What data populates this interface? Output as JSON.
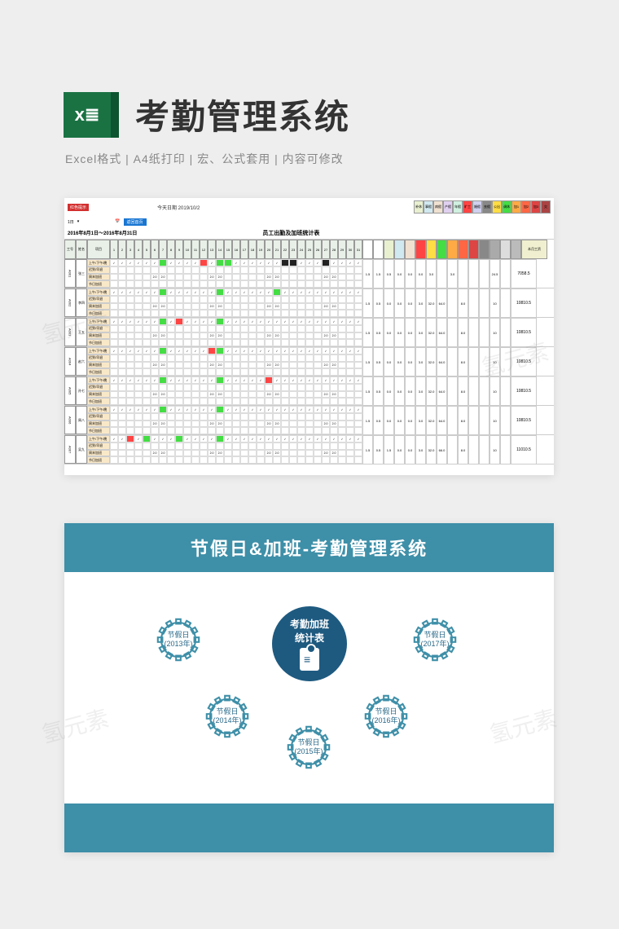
{
  "watermark_text": "氢元素",
  "header": {
    "title": "考勤管理系统",
    "subtitle": "Excel格式 |  A4纸打印 | 宏、公式套用 | 内容可修改"
  },
  "spreadsheet": {
    "today_label": "今天日期 2019/10/2",
    "date_selector": "1日",
    "return_btn": "返回首页",
    "date_range": "2016年8月1日～2016年8月31日",
    "table_title": "员工出勤及加班统计表",
    "legend_items": [
      {
        "label": "补休",
        "bg": "#e8f0d0"
      },
      {
        "label": "事假",
        "bg": "#d0e8f0"
      },
      {
        "label": "病假",
        "bg": "#f0e0d0"
      },
      {
        "label": "产假",
        "bg": "#e0d0f0"
      },
      {
        "label": "年假",
        "bg": "#d0f0e0"
      },
      {
        "label": "旷工",
        "bg": "#ff4444"
      },
      {
        "label": "婚假",
        "bg": "#d0d0f0"
      },
      {
        "label": "丧假",
        "bg": "#888888"
      },
      {
        "label": "公出",
        "bg": "#ffdd44"
      },
      {
        "label": "调休",
        "bg": "#44dd44"
      },
      {
        "label": "加1",
        "bg": "#ffaa44"
      },
      {
        "label": "加2",
        "bg": "#ff6644"
      },
      {
        "label": "加3",
        "bg": "#dd4444"
      },
      {
        "label": "欠",
        "bg": "#aa4444"
      }
    ],
    "header_cols": {
      "id": "工号",
      "name": "姓名",
      "item": "项目",
      "salary": "本月工资"
    },
    "days": [
      1,
      2,
      3,
      4,
      5,
      6,
      7,
      8,
      9,
      10,
      11,
      12,
      13,
      14,
      15,
      16,
      17,
      18,
      19,
      20,
      21,
      22,
      23,
      24,
      25,
      26,
      27,
      28,
      29,
      30,
      31
    ],
    "stat_headers": [
      {
        "label": "",
        "bg": "#fff"
      },
      {
        "label": "",
        "bg": "#fff"
      },
      {
        "label": "",
        "bg": "#e8f0d0"
      },
      {
        "label": "",
        "bg": "#d0e8f0"
      },
      {
        "label": "",
        "bg": "#f0e0d0"
      },
      {
        "label": "",
        "bg": "#ff4444"
      },
      {
        "label": "",
        "bg": "#ffdd44"
      },
      {
        "label": "",
        "bg": "#44dd44"
      },
      {
        "label": "",
        "bg": "#ffaa44"
      },
      {
        "label": "",
        "bg": "#ff6644"
      },
      {
        "label": "",
        "bg": "#dd4444"
      },
      {
        "label": "",
        "bg": "#888"
      },
      {
        "label": "",
        "bg": "#aaa"
      },
      {
        "label": "",
        "bg": "#ddd"
      },
      {
        "label": "",
        "bg": "#bbb"
      }
    ],
    "row_labels": [
      "上午/下午/晚",
      "迟到/早退",
      "周末加班",
      "节日加班"
    ],
    "employees": [
      {
        "id": "A001",
        "name": "张三",
        "salary": "7058.5",
        "cells_bg": {
          "0-6": "#44dd44",
          "0-13": "#44dd44",
          "0-14": "#44dd44",
          "0-11": "#ff4444",
          "0-21": "#222",
          "0-22": "#222",
          "0-26": "#222"
        },
        "stats": [
          "1.5",
          "1.5",
          "0.5",
          "0.0",
          "0.0",
          "0.0",
          "3.0",
          "",
          "3.0",
          "",
          "",
          "",
          "24.5",
          ""
        ]
      },
      {
        "id": "A002",
        "name": "李四",
        "salary": "10810.5",
        "cells_bg": {
          "0-6": "#44dd44",
          "0-13": "#44dd44",
          "0-20": "#44dd44"
        },
        "stats": [
          "1.5",
          "0.5",
          "0.0",
          "0.0",
          "0.0",
          "3.0",
          "32.0",
          "64.0",
          "",
          "8.0",
          "",
          "",
          "10",
          ""
        ]
      },
      {
        "id": "A003",
        "name": "王五",
        "salary": "10810.5",
        "cells_bg": {
          "0-6": "#44dd44",
          "0-13": "#44dd44",
          "0-8": "#ff4444"
        },
        "stats": [
          "1.5",
          "0.5",
          "0.0",
          "0.0",
          "0.0",
          "3.0",
          "32.0",
          "64.0",
          "",
          "8.0",
          "",
          "",
          "10",
          ""
        ]
      },
      {
        "id": "A004",
        "name": "赵六",
        "salary": "10810.5",
        "cells_bg": {
          "0-6": "#44dd44",
          "0-12": "#ff4444",
          "0-13": "#44dd44"
        },
        "stats": [
          "1.5",
          "0.5",
          "0.0",
          "0.0",
          "0.0",
          "3.0",
          "32.0",
          "64.0",
          "",
          "8.0",
          "",
          "",
          "10",
          ""
        ]
      },
      {
        "id": "A005",
        "name": "孙七",
        "salary": "10810.5",
        "cells_bg": {
          "0-6": "#44dd44",
          "0-13": "#44dd44",
          "0-19": "#ff4444"
        },
        "stats": [
          "1.5",
          "0.5",
          "0.0",
          "0.0",
          "0.0",
          "3.0",
          "32.0",
          "64.0",
          "",
          "8.0",
          "",
          "",
          "10",
          ""
        ]
      },
      {
        "id": "A006",
        "name": "周八",
        "salary": "10810.5",
        "cells_bg": {
          "0-6": "#44dd44",
          "0-13": "#44dd44"
        },
        "stats": [
          "1.5",
          "0.5",
          "0.0",
          "0.0",
          "0.0",
          "3.0",
          "32.0",
          "64.0",
          "",
          "8.0",
          "",
          "",
          "10",
          ""
        ]
      },
      {
        "id": "A007",
        "name": "吴九",
        "salary": "11010.5",
        "cells_bg": {
          "0-2": "#ff4444",
          "0-4": "#44dd44",
          "0-8": "#44dd44",
          "0-13": "#44dd44"
        },
        "stats": [
          "1.5",
          "0.5",
          "1.5",
          "0.0",
          "0.0",
          "3.0",
          "32.0",
          "66.0",
          "",
          "8.0",
          "",
          "",
          "10",
          ""
        ]
      }
    ]
  },
  "info_panel": {
    "title": "节假日&加班-考勤管理系统",
    "center": {
      "line1": "考勤加班",
      "line2": "统计表"
    },
    "gears": [
      {
        "label": "节假日",
        "year": "(2013年)",
        "pos": "g1"
      },
      {
        "label": "节假日",
        "year": "(2017年)",
        "pos": "g2"
      },
      {
        "label": "节假日",
        "year": "(2014年)",
        "pos": "g3"
      },
      {
        "label": "节假日",
        "year": "(2016年)",
        "pos": "g4"
      },
      {
        "label": "节假日",
        "year": "(2015年)",
        "pos": "g5"
      }
    ]
  },
  "colors": {
    "excel_green": "#1a7243",
    "teal": "#3e8fa8",
    "dark_blue": "#1e5a80"
  }
}
